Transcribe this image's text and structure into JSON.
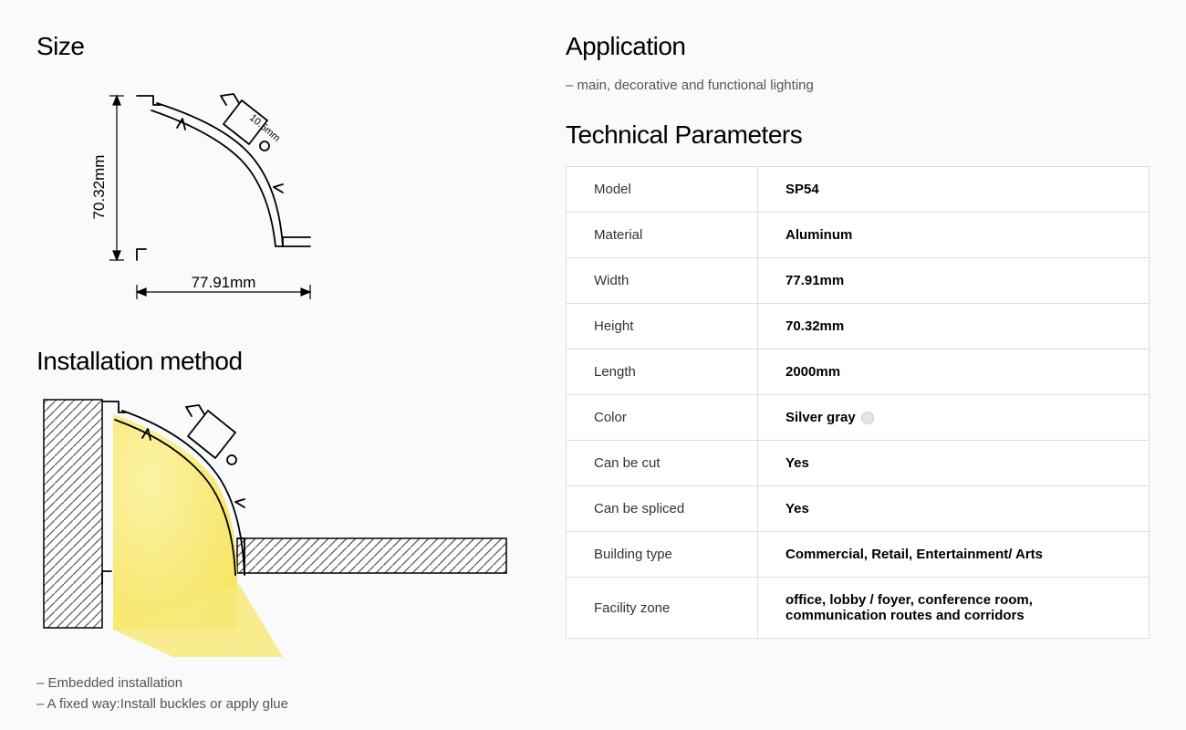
{
  "left": {
    "size": {
      "heading": "Size",
      "height_label": "70.32mm",
      "width_label": "77.91mm",
      "slot_label": "10.5mm",
      "stroke_color": "#000000",
      "stroke_width": 1.2
    },
    "installation": {
      "heading": "Installation method",
      "bullets": [
        "– Embedded installation",
        "– A fixed way:Install buckles or apply glue"
      ],
      "light_fill": "#f8e97a",
      "hatch_stroke": "#555555",
      "stroke_color": "#000000"
    }
  },
  "right": {
    "application": {
      "heading": "Application",
      "bullet": "– main, decorative and functional lighting"
    },
    "parameters": {
      "heading": "Technical Parameters",
      "rows": [
        {
          "label": "Model",
          "value": "SP54"
        },
        {
          "label": "Material",
          "value": "Aluminum"
        },
        {
          "label": "Width",
          "value": "77.91mm"
        },
        {
          "label": "Height",
          "value": "70.32mm"
        },
        {
          "label": "Length",
          "value": "2000mm"
        },
        {
          "label": "Color",
          "value": "Silver gray",
          "swatch": "#e5e5e5"
        },
        {
          "label": "Can be cut",
          "value": "Yes"
        },
        {
          "label": "Can be spliced",
          "value": "Yes"
        },
        {
          "label": "Building type",
          "value": "Commercial, Retail, Entertainment/ Arts"
        },
        {
          "label": "Facility zone",
          "value": "office, lobby / foyer, conference room, communication routes and corridors"
        }
      ],
      "border_color": "#dddddd",
      "cell_padding": 16
    }
  }
}
